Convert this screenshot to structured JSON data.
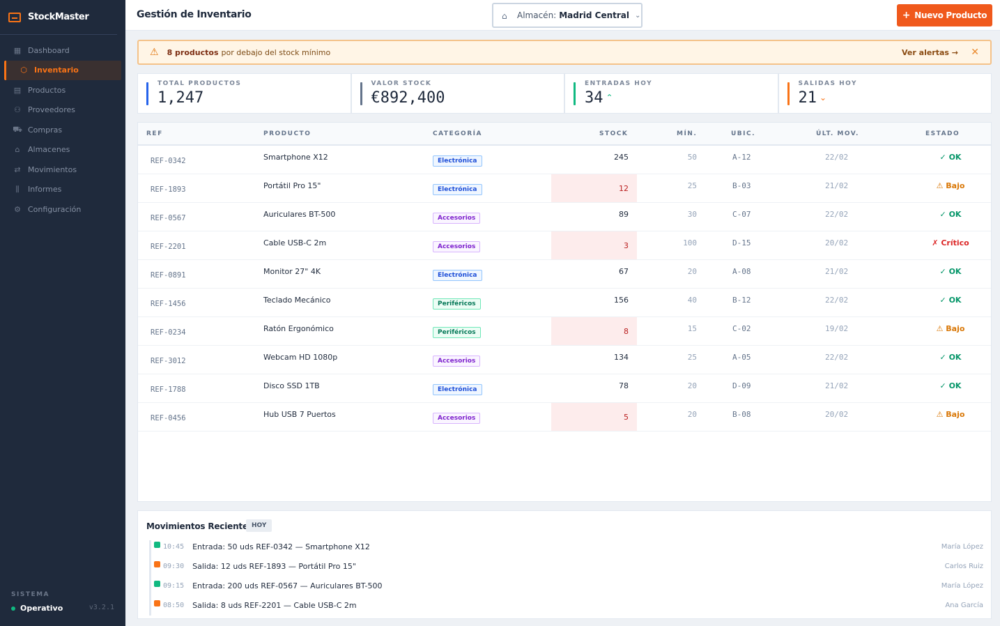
{
  "app": {
    "name": "StockMaster",
    "version": "v3.2.1"
  },
  "sidebar": {
    "items": [
      {
        "label": "Dashboard",
        "icon": "grid-icon",
        "glyph": "▦"
      },
      {
        "label": "Inventario",
        "icon": "box-icon",
        "glyph": "⬡"
      },
      {
        "label": "Productos",
        "icon": "package-icon",
        "glyph": "▤"
      },
      {
        "label": "Proveedores",
        "icon": "users-icon",
        "glyph": "⚇"
      },
      {
        "label": "Compras",
        "icon": "cart-icon",
        "glyph": "⛟"
      },
      {
        "label": "Almacenes",
        "icon": "warehouse-icon",
        "glyph": "⌂"
      },
      {
        "label": "Movimientos",
        "icon": "arrows-icon",
        "glyph": "⇄"
      },
      {
        "label": "Informes",
        "icon": "bar-chart-icon",
        "glyph": "⫼"
      },
      {
        "label": "Configuración",
        "icon": "gear-icon",
        "glyph": "⚙"
      }
    ],
    "active_index": 1,
    "system_label": "SISTEMA",
    "system_status": "Operativo"
  },
  "header": {
    "title": "Gestión de Inventario",
    "warehouse_prefix": "Almacén:",
    "warehouse_value": "Madrid Central",
    "new_button": "Nuevo Producto"
  },
  "alert": {
    "count_text": "8 productos",
    "message": "por debajo del stock mínimo",
    "link": "Ver alertas →"
  },
  "stats": [
    {
      "label": "TOTAL PRODUCTOS",
      "value": "1,247",
      "accent": "#2563eb",
      "arrow": ""
    },
    {
      "label": "VALOR STOCK",
      "value": "€892,400",
      "accent": "#64748b",
      "arrow": ""
    },
    {
      "label": "ENTRADAS HOY",
      "value": "34",
      "accent": "#10b981",
      "arrow": "⌃"
    },
    {
      "label": "SALIDAS HOY",
      "value": "21",
      "accent": "#f97316",
      "arrow": "⌄"
    }
  ],
  "table": {
    "headers": {
      "ref": "REF",
      "product": "PRODUCTO",
      "category": "CATEGORÍA",
      "stock": "STOCK",
      "min": "MÍN.",
      "loc": "UBIC.",
      "date": "ÚLT. MOV.",
      "status": "ESTADO"
    },
    "rows": [
      {
        "ref": "REF-0342",
        "product": "Smartphone X12",
        "category": "Electrónica",
        "stock": "245",
        "min": "50",
        "loc": "A-12",
        "date": "22/02",
        "status": "✓ OK",
        "level": "ok"
      },
      {
        "ref": "REF-1893",
        "product": "Portátil Pro 15\"",
        "category": "Electrónica",
        "stock": "12",
        "min": "25",
        "loc": "B-03",
        "date": "21/02",
        "status": "⚠ Bajo",
        "level": "low"
      },
      {
        "ref": "REF-0567",
        "product": "Auriculares BT-500",
        "category": "Accesorios",
        "stock": "89",
        "min": "30",
        "loc": "C-07",
        "date": "22/02",
        "status": "✓ OK",
        "level": "ok"
      },
      {
        "ref": "REF-2201",
        "product": "Cable USB-C 2m",
        "category": "Accesorios",
        "stock": "3",
        "min": "100",
        "loc": "D-15",
        "date": "20/02",
        "status": "✗ Crítico",
        "level": "crit"
      },
      {
        "ref": "REF-0891",
        "product": "Monitor 27\" 4K",
        "category": "Electrónica",
        "stock": "67",
        "min": "20",
        "loc": "A-08",
        "date": "21/02",
        "status": "✓ OK",
        "level": "ok"
      },
      {
        "ref": "REF-1456",
        "product": "Teclado Mecánico",
        "category": "Periféricos",
        "stock": "156",
        "min": "40",
        "loc": "B-12",
        "date": "22/02",
        "status": "✓ OK",
        "level": "ok"
      },
      {
        "ref": "REF-0234",
        "product": "Ratón Ergonómico",
        "category": "Periféricos",
        "stock": "8",
        "min": "15",
        "loc": "C-02",
        "date": "19/02",
        "status": "⚠ Bajo",
        "level": "low"
      },
      {
        "ref": "REF-3012",
        "product": "Webcam HD 1080p",
        "category": "Accesorios",
        "stock": "134",
        "min": "25",
        "loc": "A-05",
        "date": "22/02",
        "status": "✓ OK",
        "level": "ok"
      },
      {
        "ref": "REF-1788",
        "product": "Disco SSD 1TB",
        "category": "Electrónica",
        "stock": "78",
        "min": "20",
        "loc": "D-09",
        "date": "21/02",
        "status": "✓ OK",
        "level": "ok"
      },
      {
        "ref": "REF-0456",
        "product": "Hub USB 7 Puertos",
        "category": "Accesorios",
        "stock": "5",
        "min": "20",
        "loc": "B-08",
        "date": "20/02",
        "status": "⚠ Bajo",
        "level": "low"
      }
    ]
  },
  "category_colors": {
    "Electrónica": {
      "fg": "#1d4ed8",
      "bg": "#eff6ff",
      "border": "#93c5fd"
    },
    "Accesorios": {
      "fg": "#7e22ce",
      "bg": "#faf5ff",
      "border": "#d8b4fe"
    },
    "Periféricos": {
      "fg": "#047857",
      "bg": "#ecfdf5",
      "border": "#6ee7b7"
    }
  },
  "movements": {
    "title": "Movimientos Recientes",
    "badge": "HOY",
    "items": [
      {
        "time": "10:45",
        "text": "Entrada: 50 uds REF-0342 — Smartphone X12",
        "user": "María López",
        "type": "in"
      },
      {
        "time": "09:30",
        "text": "Salida: 12 uds REF-1893 — Portátil Pro 15\"",
        "user": "Carlos Ruiz",
        "type": "out"
      },
      {
        "time": "09:15",
        "text": "Entrada: 200 uds REF-0567 — Auriculares BT-500",
        "user": "María López",
        "type": "in"
      },
      {
        "time": "08:50",
        "text": "Salida: 8 uds REF-2201 — Cable USB-C 2m",
        "user": "Ana García",
        "type": "out"
      }
    ],
    "colors": {
      "in": "#10b981",
      "out": "#f97316"
    }
  }
}
